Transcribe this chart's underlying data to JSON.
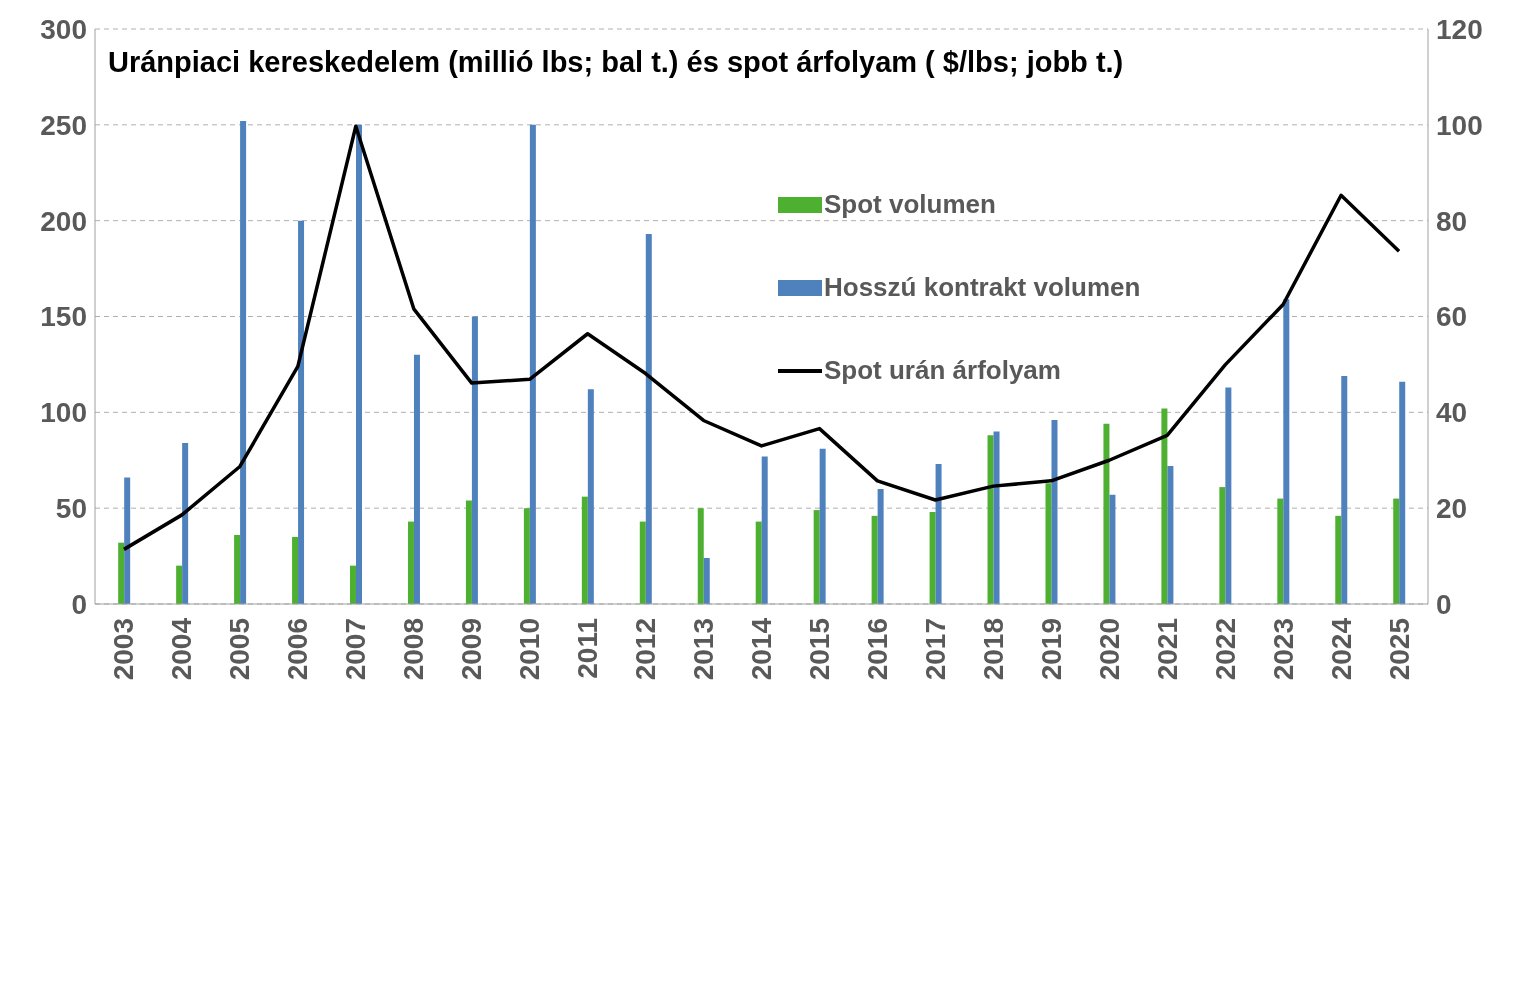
{
  "chart_data": {
    "type": "bar",
    "title": "Uránpiaci kereskedelem (millió lbs; bal t.) és spot árfolyam ( $/lbs; jobb t.)",
    "categories": [
      "2003",
      "2004",
      "2005",
      "2006",
      "2007",
      "2008",
      "2009",
      "2010",
      "2011",
      "2012",
      "2013",
      "2014",
      "2015",
      "2016",
      "2017",
      "2018",
      "2019",
      "2020",
      "2021",
      "2022",
      "2023",
      "2024",
      "2025"
    ],
    "series": [
      {
        "name": "Spot volumen",
        "color": "#4eb031",
        "values": [
          32,
          20,
          36,
          35,
          20,
          43,
          54,
          50,
          56,
          43,
          50,
          43,
          49,
          46,
          48,
          88,
          63,
          94,
          102,
          61,
          55,
          46,
          55
        ]
      },
      {
        "name": "Hosszú kontrakt volumen",
        "color": "#4f81bd",
        "values": [
          66,
          84,
          252,
          200,
          250,
          130,
          150,
          250,
          112,
          193,
          24,
          77,
          81,
          60,
          73,
          90,
          96,
          57,
          72,
          113,
          159,
          119,
          116
        ]
      },
      {
        "name": "Spot urán árfolyam",
        "type": "line",
        "axis": "y2",
        "color": "#000000",
        "values": [
          11.4,
          18.6,
          28.7,
          49.6,
          99.7,
          61.6,
          46.1,
          46.9,
          56.4,
          48.1,
          38.3,
          33,
          36.6,
          25.7,
          21.7,
          24.6,
          25.7,
          30,
          35.2,
          49.9,
          62.5,
          85.3,
          73.6
        ]
      }
    ],
    "ylim": [
      0,
      300
    ],
    "yticks": [
      0,
      50,
      100,
      150,
      200,
      250,
      300
    ],
    "y2lim": [
      0,
      120
    ],
    "y2ticks": [
      0,
      20,
      40,
      60,
      80,
      100,
      120
    ],
    "grid": "y",
    "legend": "top right",
    "marker": "none",
    "line_style": "solid"
  }
}
